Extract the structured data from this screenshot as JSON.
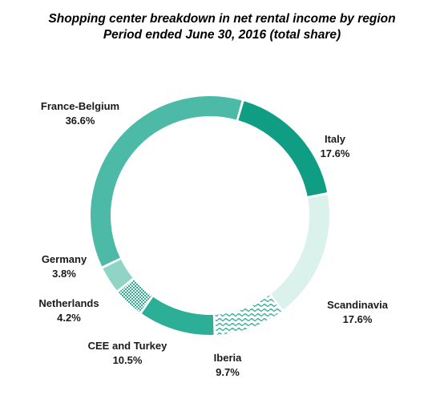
{
  "chart_data": {
    "type": "pie",
    "donut": true,
    "title": "Shopping center breakdown in net rental income by region",
    "subtitle": "Period ended June 30, 2016 (total share)",
    "legend": "none",
    "slices": [
      {
        "name": "Italy",
        "label": "17.6%",
        "value": 17.6,
        "color": "#0f9e84",
        "pattern": "solid"
      },
      {
        "name": "Scandinavia",
        "label": "17.6%",
        "value": 17.6,
        "color": "#dbf1ec",
        "pattern": "solid"
      },
      {
        "name": "Iberia",
        "label": "9.7%",
        "value": 9.7,
        "color": "#2eae96",
        "pattern": "wave"
      },
      {
        "name": "CEE and Turkey",
        "label": "10.5%",
        "value": 10.5,
        "color": "#2daf97",
        "pattern": "solid"
      },
      {
        "name": "Netherlands",
        "label": "4.2%",
        "value": 4.2,
        "color": "#2eae96",
        "pattern": "checker"
      },
      {
        "name": "Germany",
        "label": "3.8%",
        "value": 3.8,
        "color": "#8fd4c5",
        "pattern": "solid"
      },
      {
        "name": "France-Belgium",
        "label": "36.6%",
        "value": 36.6,
        "color": "#4cbaa6",
        "pattern": "solid"
      }
    ]
  }
}
